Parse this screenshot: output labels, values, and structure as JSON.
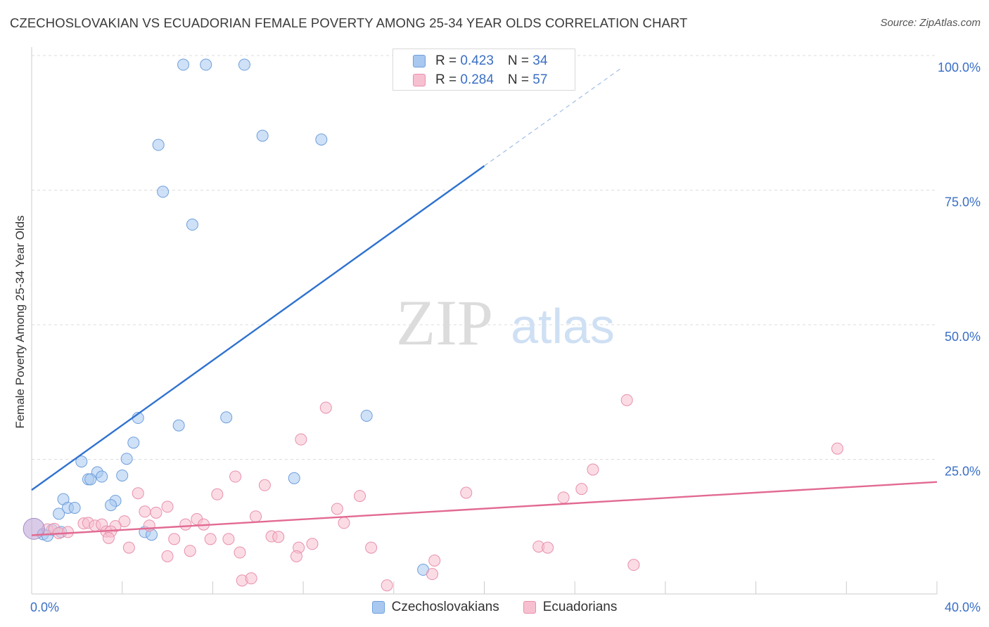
{
  "title": "CZECHOSLOVAKIAN VS ECUADORIAN FEMALE POVERTY AMONG 25-34 YEAR OLDS CORRELATION CHART",
  "source": "Source: ZipAtlas.com",
  "watermark": {
    "zip": "ZIP",
    "atlas": "atlas"
  },
  "stats": [
    {
      "r_label": "R = ",
      "r_value": "0.423",
      "n_label": "N = ",
      "n_value": "34",
      "color": "#a8c8f0",
      "border": "#6f9fdc"
    },
    {
      "r_label": "R = ",
      "r_value": "0.284",
      "n_label": "N = ",
      "n_value": "57",
      "color": "#f7c0d0",
      "border": "#e890ac"
    }
  ],
  "legend": [
    {
      "label": "Czechoslovakians",
      "color": "#a8c8f0",
      "border": "#6f9fdc"
    },
    {
      "label": "Ecuadorians",
      "color": "#f7c0d0",
      "border": "#e890ac"
    }
  ],
  "chart_data": {
    "type": "scatter",
    "title": "CZECHOSLOVAKIAN VS ECUADORIAN FEMALE POVERTY AMONG 25-34 YEAR OLDS CORRELATION CHART",
    "xlabel": "",
    "ylabel": "Female Poverty Among 25-34 Year Olds",
    "xlim": [
      0,
      40
    ],
    "ylim": [
      0,
      100
    ],
    "x_tick_labels": [
      "0.0%",
      "40.0%"
    ],
    "y_tick_labels": [
      "25.0%",
      "50.0%",
      "75.0%",
      "100.0%"
    ],
    "y_ticks": [
      25,
      50,
      75,
      100
    ],
    "grid": true,
    "legend_position": "bottom",
    "series": [
      {
        "name": "Czechoslovakians",
        "color": "#6f9fdc",
        "fill": "#a8c8f0",
        "line_color": "#2f72d0",
        "r": 0.423,
        "n": 34,
        "trend": {
          "x0": 0,
          "y0": 19.3,
          "x1": 20,
          "y1": 79.5,
          "dash_x1": 26,
          "dash_y1": 97.5
        },
        "points": [
          [
            6.7,
            98.3
          ],
          [
            7.7,
            98.3
          ],
          [
            9.4,
            98.3
          ],
          [
            5.6,
            83.4
          ],
          [
            10.2,
            85.1
          ],
          [
            12.8,
            84.4
          ],
          [
            5.8,
            74.7
          ],
          [
            7.1,
            68.6
          ],
          [
            4.7,
            32.7
          ],
          [
            6.5,
            31.3
          ],
          [
            8.6,
            32.8
          ],
          [
            14.8,
            33.1
          ],
          [
            4.5,
            28.1
          ],
          [
            4.2,
            25.1
          ],
          [
            2.2,
            24.6
          ],
          [
            2.9,
            22.6
          ],
          [
            3.1,
            21.8
          ],
          [
            2.5,
            21.3
          ],
          [
            2.6,
            21.3
          ],
          [
            4.0,
            22.0
          ],
          [
            11.6,
            21.5
          ],
          [
            1.4,
            17.6
          ],
          [
            3.7,
            17.3
          ],
          [
            3.5,
            16.5
          ],
          [
            1.6,
            16.0
          ],
          [
            1.9,
            16.0
          ],
          [
            1.2,
            14.9
          ],
          [
            0.9,
            11.9
          ],
          [
            1.3,
            11.5
          ],
          [
            0.5,
            11.1
          ],
          [
            0.7,
            10.8
          ],
          [
            5.0,
            11.5
          ],
          [
            5.3,
            11.0
          ],
          [
            17.3,
            4.5
          ]
        ]
      },
      {
        "name": "Ecuadorians",
        "color": "#e890ac",
        "fill": "#f7c0d0",
        "line_color": "#e26a92",
        "r": 0.284,
        "n": 57,
        "trend": {
          "x0": 0,
          "y0": 10.9,
          "x1": 40,
          "y1": 20.8
        },
        "points": [
          [
            26.3,
            36.0
          ],
          [
            13.0,
            34.6
          ],
          [
            11.9,
            28.7
          ],
          [
            35.6,
            27.0
          ],
          [
            24.8,
            23.1
          ],
          [
            9.0,
            21.8
          ],
          [
            10.3,
            20.2
          ],
          [
            24.3,
            19.5
          ],
          [
            4.7,
            18.7
          ],
          [
            8.2,
            18.5
          ],
          [
            14.5,
            18.2
          ],
          [
            19.2,
            18.8
          ],
          [
            23.5,
            17.9
          ],
          [
            6.0,
            16.2
          ],
          [
            5.0,
            15.3
          ],
          [
            5.5,
            15.1
          ],
          [
            13.5,
            15.8
          ],
          [
            9.9,
            14.4
          ],
          [
            7.3,
            13.9
          ],
          [
            4.1,
            13.5
          ],
          [
            6.8,
            12.9
          ],
          [
            7.6,
            12.9
          ],
          [
            13.8,
            13.2
          ],
          [
            2.3,
            13.1
          ],
          [
            2.5,
            13.2
          ],
          [
            2.8,
            12.7
          ],
          [
            3.1,
            12.9
          ],
          [
            3.7,
            12.6
          ],
          [
            5.2,
            12.7
          ],
          [
            0.7,
            12.0
          ],
          [
            1.0,
            12.1
          ],
          [
            1.2,
            11.3
          ],
          [
            1.6,
            11.5
          ],
          [
            3.3,
            11.6
          ],
          [
            3.5,
            11.6
          ],
          [
            3.4,
            10.4
          ],
          [
            6.3,
            10.2
          ],
          [
            7.9,
            10.2
          ],
          [
            8.7,
            10.2
          ],
          [
            10.6,
            10.7
          ],
          [
            10.9,
            10.6
          ],
          [
            4.3,
            8.6
          ],
          [
            11.8,
            8.6
          ],
          [
            12.4,
            9.3
          ],
          [
            15.0,
            8.6
          ],
          [
            22.4,
            8.8
          ],
          [
            22.8,
            8.6
          ],
          [
            6.0,
            7.0
          ],
          [
            7.0,
            8.0
          ],
          [
            9.2,
            7.7
          ],
          [
            11.7,
            7.0
          ],
          [
            9.3,
            2.5
          ],
          [
            9.7,
            2.9
          ],
          [
            17.7,
            3.7
          ],
          [
            26.6,
            5.4
          ],
          [
            15.7,
            1.6
          ],
          [
            17.8,
            6.2
          ]
        ]
      }
    ]
  }
}
